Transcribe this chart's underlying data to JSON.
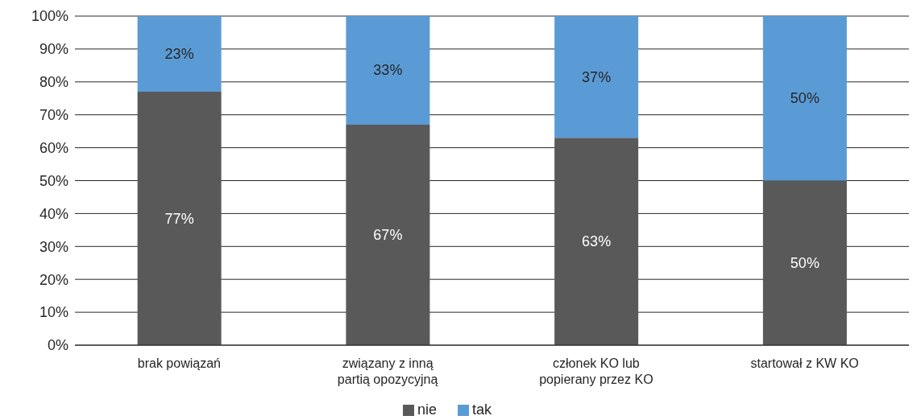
{
  "chart_data": {
    "type": "bar",
    "stacked": true,
    "categories": [
      "brak powiązań",
      "związany z inną partią opozycyjną",
      "członek KO lub popierany przez KO",
      "startował z KW KO"
    ],
    "series": [
      {
        "name": "nie",
        "color": "#595959",
        "values": [
          77,
          67,
          63,
          50
        ],
        "value_labels": [
          "77%",
          "67%",
          "63%",
          "50%"
        ]
      },
      {
        "name": "tak",
        "color": "#5b9bd5",
        "values": [
          23,
          33,
          37,
          50
        ],
        "value_labels": [
          "23%",
          "33%",
          "37%",
          "50%"
        ]
      }
    ],
    "ylim": [
      0,
      100
    ],
    "yticks": [
      {
        "value": 0,
        "label": "0%"
      },
      {
        "value": 10,
        "label": "10%"
      },
      {
        "value": 20,
        "label": "20%"
      },
      {
        "value": 30,
        "label": "30%"
      },
      {
        "value": 40,
        "label": "40%"
      },
      {
        "value": 50,
        "label": "50%"
      },
      {
        "value": 60,
        "label": "60%"
      },
      {
        "value": 70,
        "label": "70%"
      },
      {
        "value": 80,
        "label": "80%"
      },
      {
        "value": 90,
        "label": "90%"
      },
      {
        "value": 100,
        "label": "100%"
      }
    ],
    "grid": "y",
    "legend": "bottom"
  }
}
